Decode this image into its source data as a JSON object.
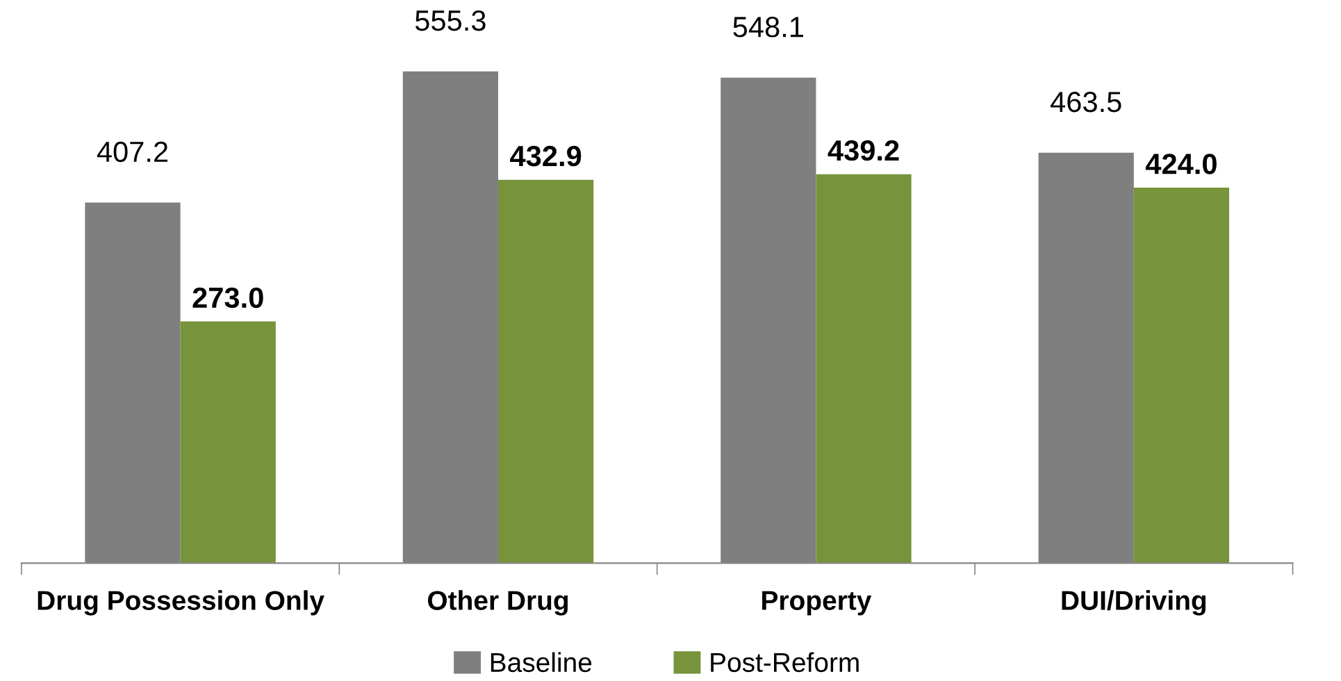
{
  "chart_data": {
    "type": "bar",
    "categories": [
      "Drug Possession Only",
      "Other Drug",
      "Property",
      "DUI/Driving"
    ],
    "series": [
      {
        "name": "Baseline",
        "color": "#7f7f7f",
        "values": [
          407.2,
          555.3,
          548.1,
          463.5
        ],
        "value_labels": [
          "407.2",
          "555.3",
          "548.1",
          "463.5"
        ]
      },
      {
        "name": "Post-Reform",
        "color": "#77933c",
        "values": [
          273.0,
          432.9,
          439.2,
          424.0
        ],
        "value_labels": [
          "273.0",
          "432.9",
          "439.2",
          "424.0"
        ]
      }
    ],
    "legend": "bottom",
    "grid": false
  }
}
